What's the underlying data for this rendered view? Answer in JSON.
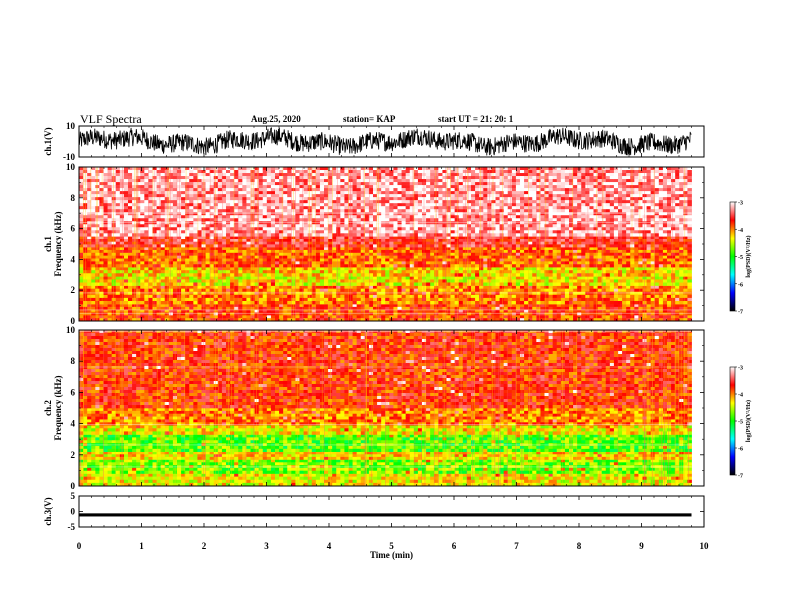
{
  "header": {
    "title": "VLF Spectra",
    "date": "Aug.25, 2020",
    "station": "station= KAP",
    "start": "start  UT  =   21: 20: 1"
  },
  "colorbar": {
    "label": "log(PSD)(V²/Hz)",
    "ticks": [
      "-3",
      "-4",
      "-5",
      "-6",
      "-7"
    ],
    "colors": [
      "#ffffff",
      "#ff0000",
      "#ffff00",
      "#00ff00",
      "#00ffff",
      "#0000ff",
      "#000000"
    ]
  },
  "chart_data": [
    {
      "type": "line",
      "panel": "ch1-waveform",
      "ylabel": "ch.1(V)",
      "ylim": [
        -10,
        10
      ],
      "ytick_labels": [
        "10",
        "-10"
      ],
      "x_range_min": [
        0,
        9.8
      ],
      "description_values": "dense oscillating waveform, mean near 0 V, amplitude about ±7 V"
    },
    {
      "type": "heatmap",
      "panel": "ch1-spectrogram",
      "ylabel_lines": [
        "ch.1",
        "Frequency  (kHz)"
      ],
      "ylim": [
        0,
        10
      ],
      "ytick_labels": [
        "0",
        "2",
        "4",
        "6",
        "8",
        "10"
      ],
      "bands": [
        {
          "f_low": 0,
          "f_high": 1.1,
          "log_psd": -4.0
        },
        {
          "f_low": 1.1,
          "f_high": 2.3,
          "log_psd": -4.2
        },
        {
          "f_low": 2.3,
          "f_high": 2.9,
          "log_psd": -4.6
        },
        {
          "f_low": 2.9,
          "f_high": 3.5,
          "log_psd": -4.5
        },
        {
          "f_low": 3.5,
          "f_high": 4.8,
          "log_psd": -4.1
        },
        {
          "f_low": 4.8,
          "f_high": 5.5,
          "log_psd": -3.7
        },
        {
          "f_low": 5.5,
          "f_high": 10,
          "log_psd": -3.3
        }
      ]
    },
    {
      "type": "heatmap",
      "panel": "ch2-spectrogram",
      "ylabel_lines": [
        "ch.2",
        "Frequency  (kHz)"
      ],
      "ylim": [
        0,
        10
      ],
      "ytick_labels": [
        "0",
        "2",
        "4",
        "6",
        "8",
        "10"
      ],
      "bands": [
        {
          "f_low": 0,
          "f_high": 0.8,
          "log_psd": -4.6
        },
        {
          "f_low": 0.8,
          "f_high": 1.7,
          "log_psd": -5.0
        },
        {
          "f_low": 1.7,
          "f_high": 2.2,
          "log_psd": -4.5
        },
        {
          "f_low": 2.2,
          "f_high": 3.3,
          "log_psd": -5.1
        },
        {
          "f_low": 3.3,
          "f_high": 3.9,
          "log_psd": -4.6
        },
        {
          "f_low": 3.9,
          "f_high": 5.0,
          "log_psd": -4.2
        },
        {
          "f_low": 5.0,
          "f_high": 10,
          "log_psd": -3.9
        }
      ]
    },
    {
      "type": "line",
      "panel": "ch3-waveform",
      "ylabel": "ch.3(V)",
      "ylim": [
        -5,
        5
      ],
      "ytick_labels": [
        "5",
        "0",
        "-5"
      ],
      "description_values": "flat thick trace near -1 V"
    }
  ],
  "xaxis": {
    "label": "Time  (min)",
    "xlim": [
      0,
      10
    ],
    "data_end": 9.8,
    "ticks": [
      "0",
      "1",
      "2",
      "3",
      "4",
      "5",
      "6",
      "7",
      "8",
      "9",
      "10"
    ]
  }
}
